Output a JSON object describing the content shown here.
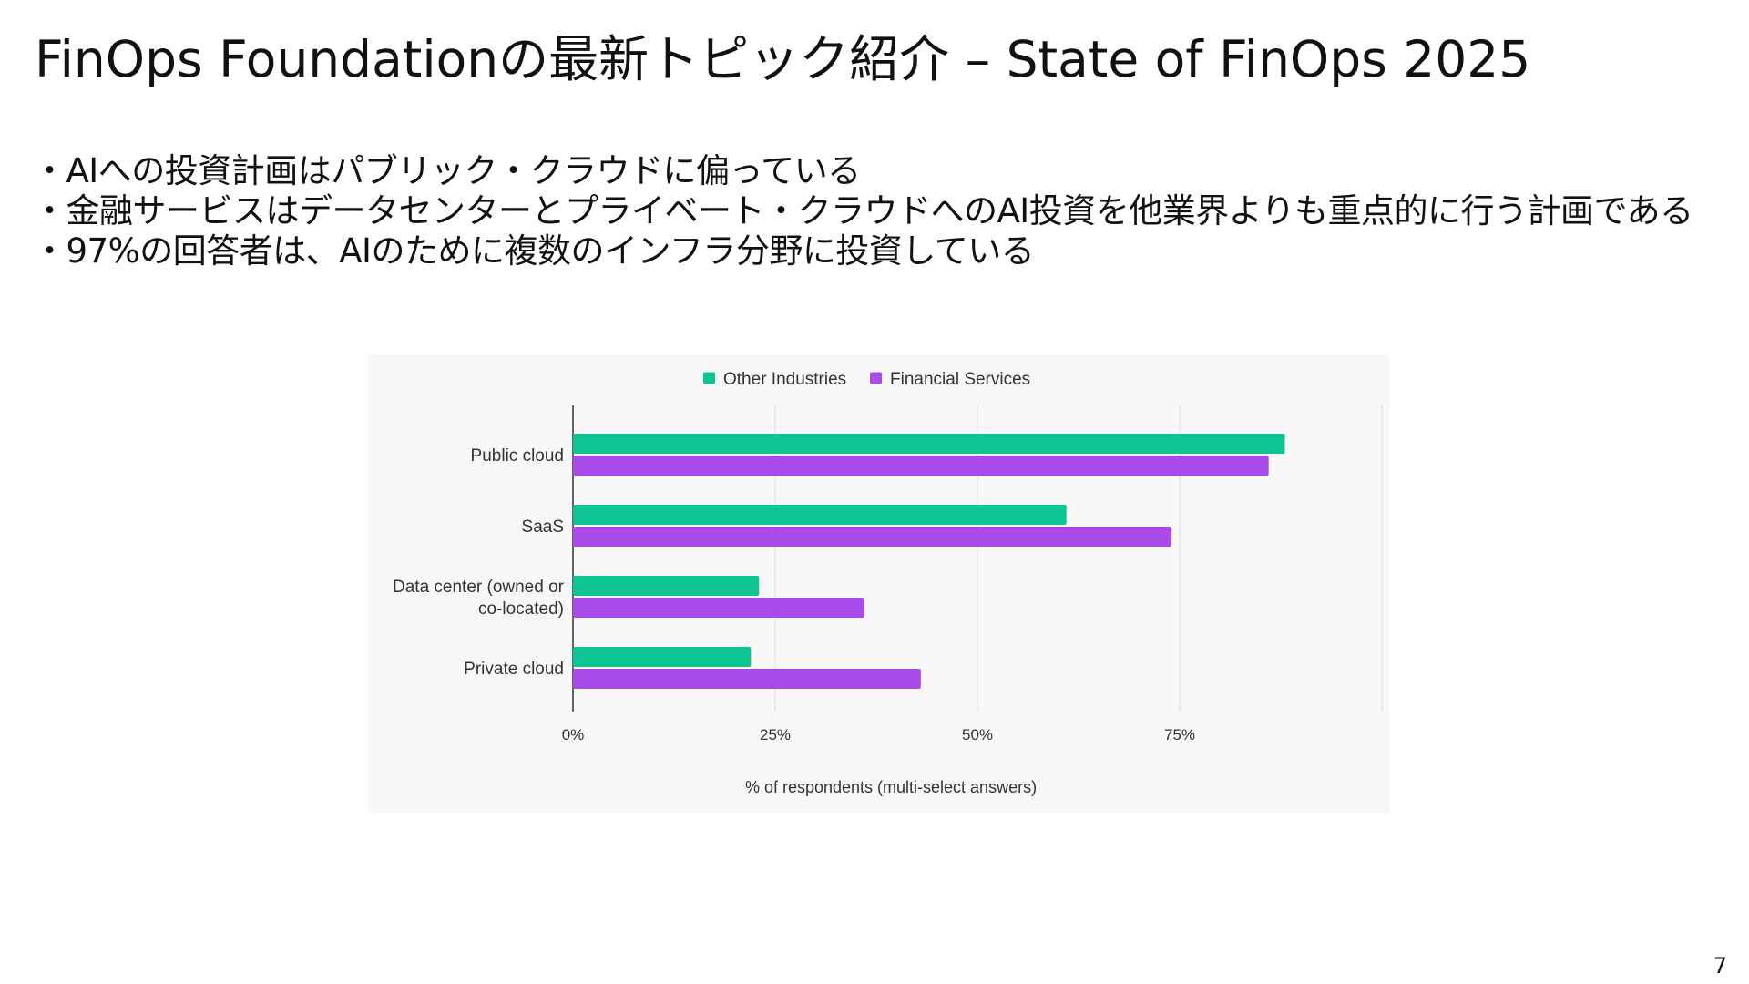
{
  "slide": {
    "title": "FinOps Foundationの最新トピック紹介 – State of FinOps 2025",
    "bullets": [
      "・AIへの投資計画はパブリック・クラウドに偏っている",
      "・金融サービスはデータセンターとプライベート・クラウドへのAI投資を他業界よりも重点的に行う計画である",
      "・97%の回答者は、AIのために複数のインフラ分野に投資している"
    ],
    "page_number": "7"
  },
  "chart_data": {
    "type": "bar",
    "orientation": "horizontal",
    "categories": [
      "Public cloud",
      "SaaS",
      "Data center (owned or co-located)",
      "Private cloud"
    ],
    "category_lines": [
      [
        "Public cloud"
      ],
      [
        "SaaS"
      ],
      [
        "Data center (owned or",
        "co-located)"
      ],
      [
        "Private cloud"
      ]
    ],
    "series": [
      {
        "name": "Other Industries",
        "values": [
          88,
          61,
          23,
          22
        ],
        "color": "#0fc493"
      },
      {
        "name": "Financial Services",
        "values": [
          86,
          74,
          36,
          43
        ],
        "color": "#a94be9"
      }
    ],
    "xlim": [
      0,
      100
    ],
    "xticks": [
      0,
      25,
      50,
      75,
      100
    ],
    "xtick_labels": [
      "0%",
      "25%",
      "50%",
      "75%",
      ""
    ],
    "xlabel": "% of respondents (multi-select answers)",
    "ylabel": "",
    "grid": true,
    "legend_position": "top-center"
  }
}
